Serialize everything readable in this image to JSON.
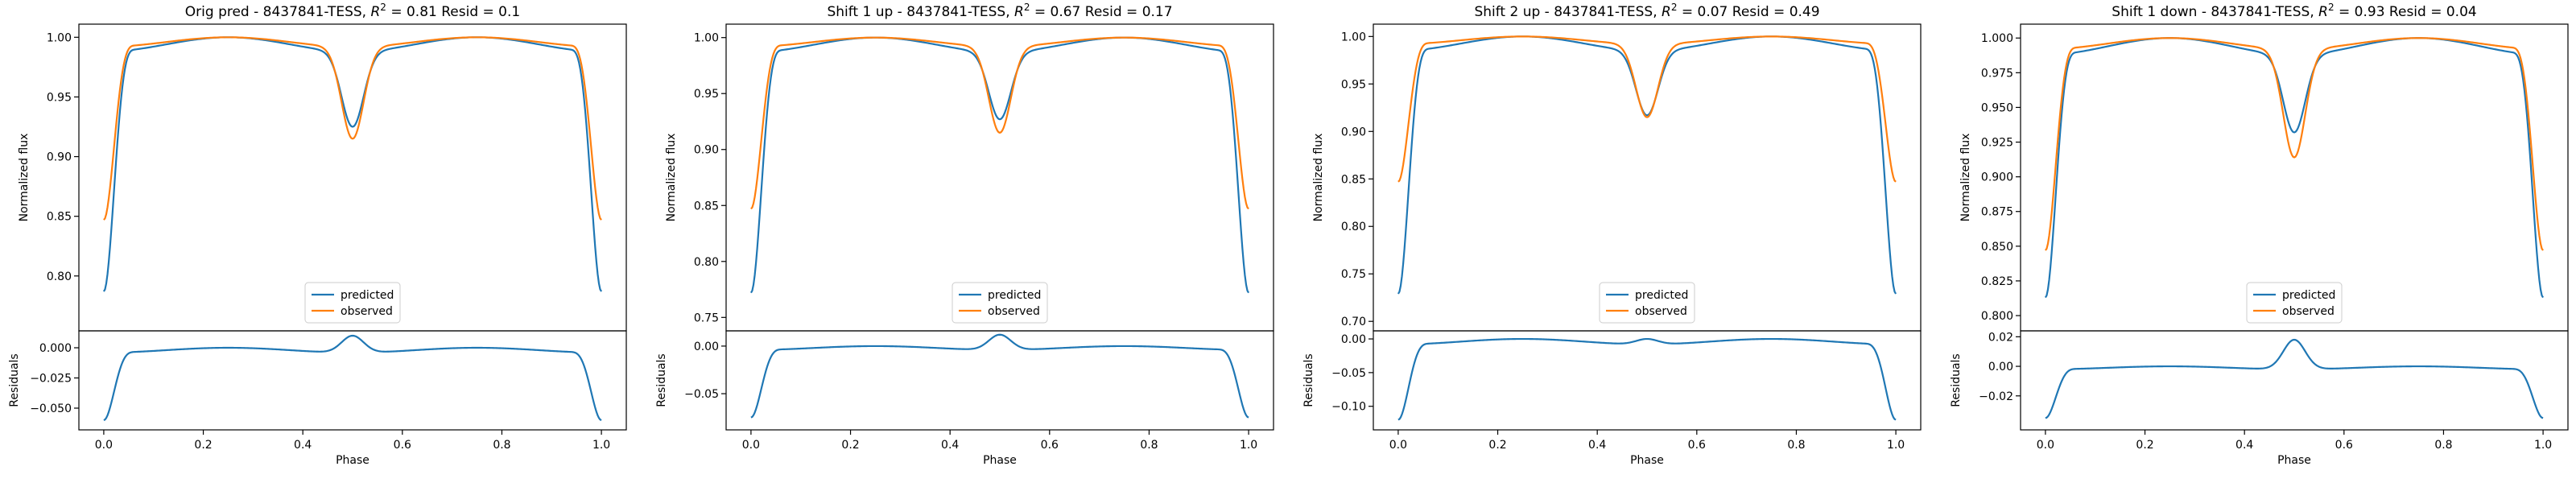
{
  "chart_data": [
    {
      "type": "line",
      "title": "Orig pred - 8437841-TESS, $R^2 = 0.81$ Resid = 0.1",
      "title_parts": {
        "prefix": "Orig pred - 8437841-TESS, ",
        "r2": "R",
        "r2_sup": "2",
        "suffix": " = 0.81 Resid = 0.1"
      },
      "top": {
        "ylabel": "Normalized flux",
        "ylim": [
          0.754,
          1.011
        ],
        "yticks": [
          0.8,
          0.85,
          0.9,
          0.95,
          1.0
        ],
        "ytick_labels": [
          "0.80",
          "0.85",
          "0.90",
          "0.95",
          "1.00"
        ],
        "predicted": {
          "edge": 0.771,
          "shoulder": 0.972,
          "dip": 0.925,
          "inner": 0.988
        },
        "observed": {
          "edge": 0.835,
          "shoulder": 0.98,
          "dip": 0.915,
          "inner": 0.992
        }
      },
      "bottom": {
        "ylabel": "Residuals",
        "ylim": [
          -0.068,
          0.014
        ],
        "yticks": [
          -0.05,
          -0.025,
          0.0
        ],
        "ytick_labels": [
          "−0.050",
          "−0.025",
          "0.000"
        ],
        "edge": -0.064,
        "shoulder": -0.008,
        "peak": 0.01,
        "side": -0.004,
        "mid": 0.0
      }
    },
    {
      "type": "line",
      "title": "Shift 1 up - 8437841-TESS, $R^2 = 0.67$ Resid = 0.17",
      "title_parts": {
        "prefix": "Shift 1 up - 8437841-TESS, ",
        "r2": "R",
        "r2_sup": "2",
        "suffix": " = 0.67 Resid = 0.17"
      },
      "top": {
        "ylabel": "Normalized flux",
        "ylim": [
          0.738,
          1.012
        ],
        "yticks": [
          0.75,
          0.8,
          0.85,
          0.9,
          0.95,
          1.0
        ],
        "ytick_labels": [
          "0.75",
          "0.80",
          "0.85",
          "0.90",
          "0.95",
          "1.00"
        ],
        "predicted": {
          "edge": 0.753,
          "shoulder": 0.968,
          "dip": 0.927,
          "inner": 0.987
        },
        "observed": {
          "edge": 0.835,
          "shoulder": 0.98,
          "dip": 0.915,
          "inner": 0.992
        }
      },
      "bottom": {
        "ylabel": "Residuals",
        "ylim": [
          -0.088,
          0.016
        ],
        "yticks": [
          -0.05,
          0.0
        ],
        "ytick_labels": [
          "−0.05",
          "0.00"
        ],
        "edge": -0.083,
        "shoulder": -0.012,
        "peak": 0.012,
        "side": -0.004,
        "mid": 0.0
      }
    },
    {
      "type": "line",
      "title": "Shift 2 up - 8437841-TESS, $R^2 = 0.07$ Resid = 0.49",
      "title_parts": {
        "prefix": "Shift 2 up - 8437841-TESS, ",
        "r2": "R",
        "r2_sup": "2",
        "suffix": " = 0.07 Resid = 0.49"
      },
      "top": {
        "ylabel": "Normalized flux",
        "ylim": [
          0.69,
          1.013
        ],
        "yticks": [
          0.7,
          0.75,
          0.8,
          0.85,
          0.9,
          0.95,
          1.0
        ],
        "ytick_labels": [
          "0.70",
          "0.75",
          "0.80",
          "0.85",
          "0.90",
          "0.95",
          "1.00"
        ],
        "predicted": {
          "edge": 0.706,
          "shoulder": 0.962,
          "dip": 0.917,
          "inner": 0.985
        },
        "observed": {
          "edge": 0.835,
          "shoulder": 0.98,
          "dip": 0.915,
          "inner": 0.992
        }
      },
      "bottom": {
        "ylabel": "Residuals",
        "ylim": [
          -0.135,
          0.012
        ],
        "yticks": [
          -0.1,
          -0.05,
          0.0
        ],
        "ytick_labels": [
          "−0.10",
          "−0.05",
          "0.00"
        ],
        "edge": -0.13,
        "shoulder": -0.018,
        "peak": 0.0,
        "side": -0.008,
        "mid": 0.0
      }
    },
    {
      "type": "line",
      "title": "Shift 1 down - 8437841-TESS, $R^2 = 0.93$ Resid = 0.04",
      "title_parts": {
        "prefix": "Shift 1 down - 8437841-TESS, ",
        "r2": "R",
        "r2_sup": "2",
        "suffix": " = 0.93 Resid = 0.04"
      },
      "top": {
        "ylabel": "Normalized flux",
        "ylim": [
          0.789,
          1.01
        ],
        "yticks": [
          0.8,
          0.825,
          0.85,
          0.875,
          0.9,
          0.925,
          0.95,
          0.975,
          1.0
        ],
        "ytick_labels": [
          "0.800",
          "0.825",
          "0.850",
          "0.875",
          "0.900",
          "0.925",
          "0.950",
          "0.975",
          "1.000"
        ],
        "predicted": {
          "edge": 0.797,
          "shoulder": 0.972,
          "dip": 0.932,
          "inner": 0.988
        },
        "observed": {
          "edge": 0.835,
          "shoulder": 0.98,
          "dip": 0.914,
          "inner": 0.992
        }
      },
      "bottom": {
        "ylabel": "Residuals",
        "ylim": [
          -0.043,
          0.024
        ],
        "yticks": [
          -0.02,
          0.0,
          0.02
        ],
        "ytick_labels": [
          "−0.02",
          "0.00",
          "0.02"
        ],
        "edge": -0.041,
        "shoulder": -0.008,
        "peak": 0.018,
        "side": -0.002,
        "mid": 0.0
      }
    }
  ],
  "shared": {
    "xlabel": "Phase",
    "xlim": [
      -0.05,
      1.05
    ],
    "xticks": [
      0.0,
      0.2,
      0.4,
      0.6,
      0.8,
      1.0
    ],
    "xtick_labels": [
      "0.0",
      "0.2",
      "0.4",
      "0.6",
      "0.8",
      "1.0"
    ],
    "legend": {
      "placement": "lower center",
      "entries": [
        "predicted",
        "observed"
      ]
    },
    "colors": {
      "predicted": "#1f77b4",
      "observed": "#ff7f0e",
      "axis": "#000000",
      "background": "#ffffff"
    }
  }
}
